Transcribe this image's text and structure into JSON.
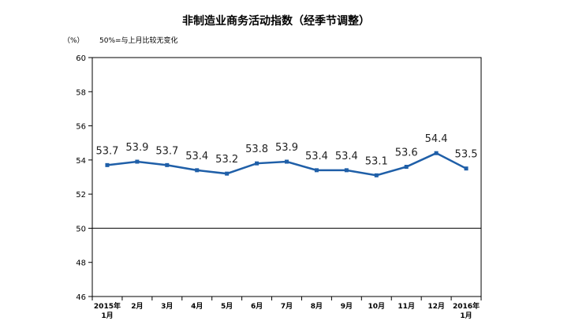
{
  "chart_data": {
    "type": "line",
    "title": "非制造业商务活动指数（经季节调整）",
    "unit_label": "（%）",
    "note": "50%=与上月比较无变化",
    "categories": [
      [
        "2015年",
        "1月"
      ],
      [
        "2月"
      ],
      [
        "3月"
      ],
      [
        "4月"
      ],
      [
        "5月"
      ],
      [
        "6月"
      ],
      [
        "7月"
      ],
      [
        "8月"
      ],
      [
        "9月"
      ],
      [
        "10月"
      ],
      [
        "11月"
      ],
      [
        "12月"
      ],
      [
        "2016年",
        "1月"
      ]
    ],
    "values": [
      53.7,
      53.9,
      53.7,
      53.4,
      53.2,
      53.8,
      53.9,
      53.4,
      53.4,
      53.1,
      53.6,
      54.4,
      53.5
    ],
    "data_labels": [
      "53.7",
      "53.9",
      "53.7",
      "53.4",
      "53.2",
      "53.8",
      "53.9",
      "53.4",
      "53.4",
      "53.1",
      "53.6",
      "54.4",
      "53.5"
    ],
    "ylim": [
      46,
      60
    ],
    "yticks": [
      "46",
      "48",
      "50",
      "52",
      "54",
      "56",
      "58",
      "60"
    ],
    "reference_line": 50,
    "line_color": "#1f5fa8",
    "grid": false,
    "xlabel": "",
    "ylabel": ""
  }
}
